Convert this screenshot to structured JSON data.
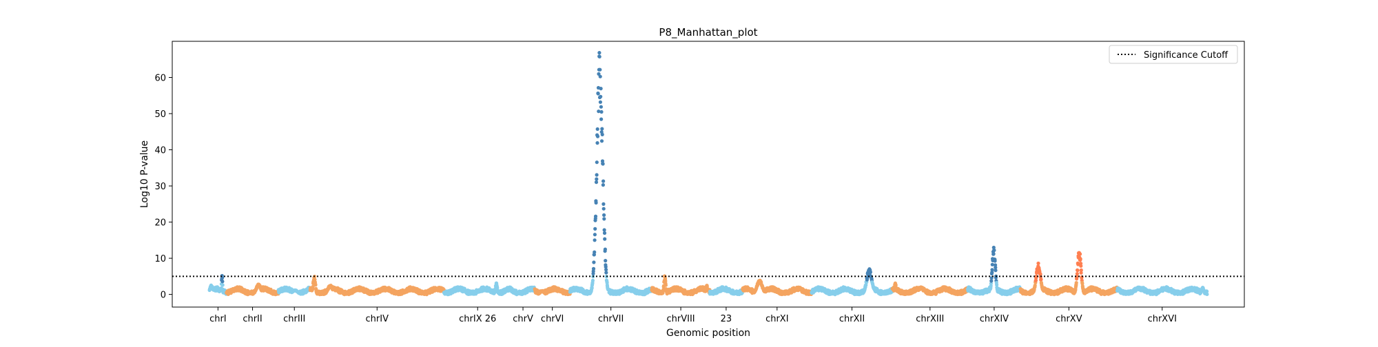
{
  "chart_data": {
    "type": "scatter",
    "title": "P8_Manhattan_plot",
    "xlabel": "Genomic position",
    "ylabel": "Log10 P-value",
    "ylim": [
      -3.5,
      70
    ],
    "yticks": [
      0,
      10,
      20,
      30,
      40,
      50,
      60
    ],
    "grid": false,
    "legend": {
      "placement": "top-right",
      "entries": [
        {
          "label": "Significance Cutoff",
          "style": "dotted"
        }
      ]
    },
    "significance_cutoff": 5,
    "colors": {
      "light": "#87CEEB",
      "tan": "#F4A460",
      "dark": "#4682B4",
      "coral": "#FF7F50"
    },
    "chromosomes": [
      {
        "name": "chrI",
        "start": 0.0,
        "end": 0.46,
        "peaks": [
          {
            "pos": 0.34,
            "h": 5.5,
            "w": 0.03
          },
          {
            "pos": 0.05,
            "h": 2.5,
            "w": 0.08
          }
        ]
      },
      {
        "name": "chrII",
        "start": 0.46,
        "end": 1.86,
        "peaks": [
          {
            "pos": 1.32,
            "h": 2.8,
            "w": 0.12
          }
        ]
      },
      {
        "name": "chrIII",
        "start": 1.86,
        "end": 2.71,
        "peaks": [
          {
            "pos": 2.3,
            "h": 1.2,
            "w": 0.15
          }
        ]
      },
      {
        "name": "chrIV",
        "start": 2.71,
        "end": 6.31,
        "peaks": [
          {
            "pos": 2.82,
            "h": 5.0,
            "w": 0.06
          },
          {
            "pos": 3.25,
            "h": 2.5,
            "w": 0.12
          }
        ]
      },
      {
        "name": "chrIX 26",
        "start": 6.31,
        "end": 8.12,
        "peaks": [
          {
            "pos": 7.72,
            "h": 3.0,
            "w": 0.05
          },
          {
            "pos": 7.4,
            "h": 1.0,
            "w": 0.2
          }
        ]
      },
      {
        "name": "chrV",
        "start": 8.12,
        "end": 8.75,
        "peaks": []
      },
      {
        "name": "chrVI",
        "start": 8.75,
        "end": 9.7,
        "peaks": [
          {
            "pos": 8.95,
            "h": 1.0,
            "w": 0.1
          }
        ]
      },
      {
        "name": "chrVII",
        "start": 9.7,
        "end": 11.9,
        "peaks": [
          {
            "pos": 10.5,
            "h": 66,
            "w": 0.16
          }
        ]
      },
      {
        "name": "chrVIII",
        "start": 11.9,
        "end": 13.46,
        "peaks": [
          {
            "pos": 12.25,
            "h": 5.0,
            "w": 0.05
          },
          {
            "pos": 13.38,
            "h": 2.5,
            "w": 0.04
          }
        ]
      },
      {
        "name": "23",
        "start": 13.46,
        "end": 14.34,
        "peaks": []
      },
      {
        "name": "chrXI",
        "start": 14.34,
        "end": 16.2,
        "peaks": [
          {
            "pos": 14.8,
            "h": 3.8,
            "w": 0.15
          }
        ]
      },
      {
        "name": "chrXII",
        "start": 16.2,
        "end": 18.37,
        "peaks": [
          {
            "pos": 17.75,
            "h": 7.0,
            "w": 0.14
          }
        ]
      },
      {
        "name": "chrXIII",
        "start": 18.37,
        "end": 20.4,
        "peaks": [
          {
            "pos": 18.45,
            "h": 3.0,
            "w": 0.05
          },
          {
            "pos": 19.15,
            "h": 2.0,
            "w": 0.1
          }
        ]
      },
      {
        "name": "chrXIV",
        "start": 20.4,
        "end": 21.82,
        "peaks": [
          {
            "pos": 21.1,
            "h": 12.5,
            "w": 0.09
          }
        ]
      },
      {
        "name": "chrXV",
        "start": 21.82,
        "end": 24.42,
        "peaks": [
          {
            "pos": 22.3,
            "h": 8.5,
            "w": 0.12
          },
          {
            "pos": 23.4,
            "h": 12.0,
            "w": 0.1
          }
        ]
      },
      {
        "name": "chrXVI",
        "start": 24.42,
        "end": 26.84,
        "peaks": [
          {
            "pos": 26.72,
            "h": 2.0,
            "w": 0.06
          }
        ]
      }
    ],
    "color_sequence": [
      "light",
      "tan",
      "light",
      "tan",
      "light",
      "light",
      "tan",
      "light",
      "tan",
      "light",
      "tan",
      "light",
      "tan",
      "light",
      "tan",
      "light"
    ],
    "peak_colors": {
      "chrVII": "dark",
      "chrXII": "dark",
      "chrXIV": "dark",
      "chrXV": "coral",
      "chrI": "dark"
    },
    "tick_labels": [
      "chrI",
      "chrII",
      "chrIII",
      "chrIV",
      "chrIX 26",
      "chrV",
      "chrVI",
      "chrVII",
      "chrVIII",
      "23",
      "chrXI",
      "chrXII",
      "chrXIII",
      "chrXIV",
      "chrXV",
      "chrXVI"
    ]
  }
}
